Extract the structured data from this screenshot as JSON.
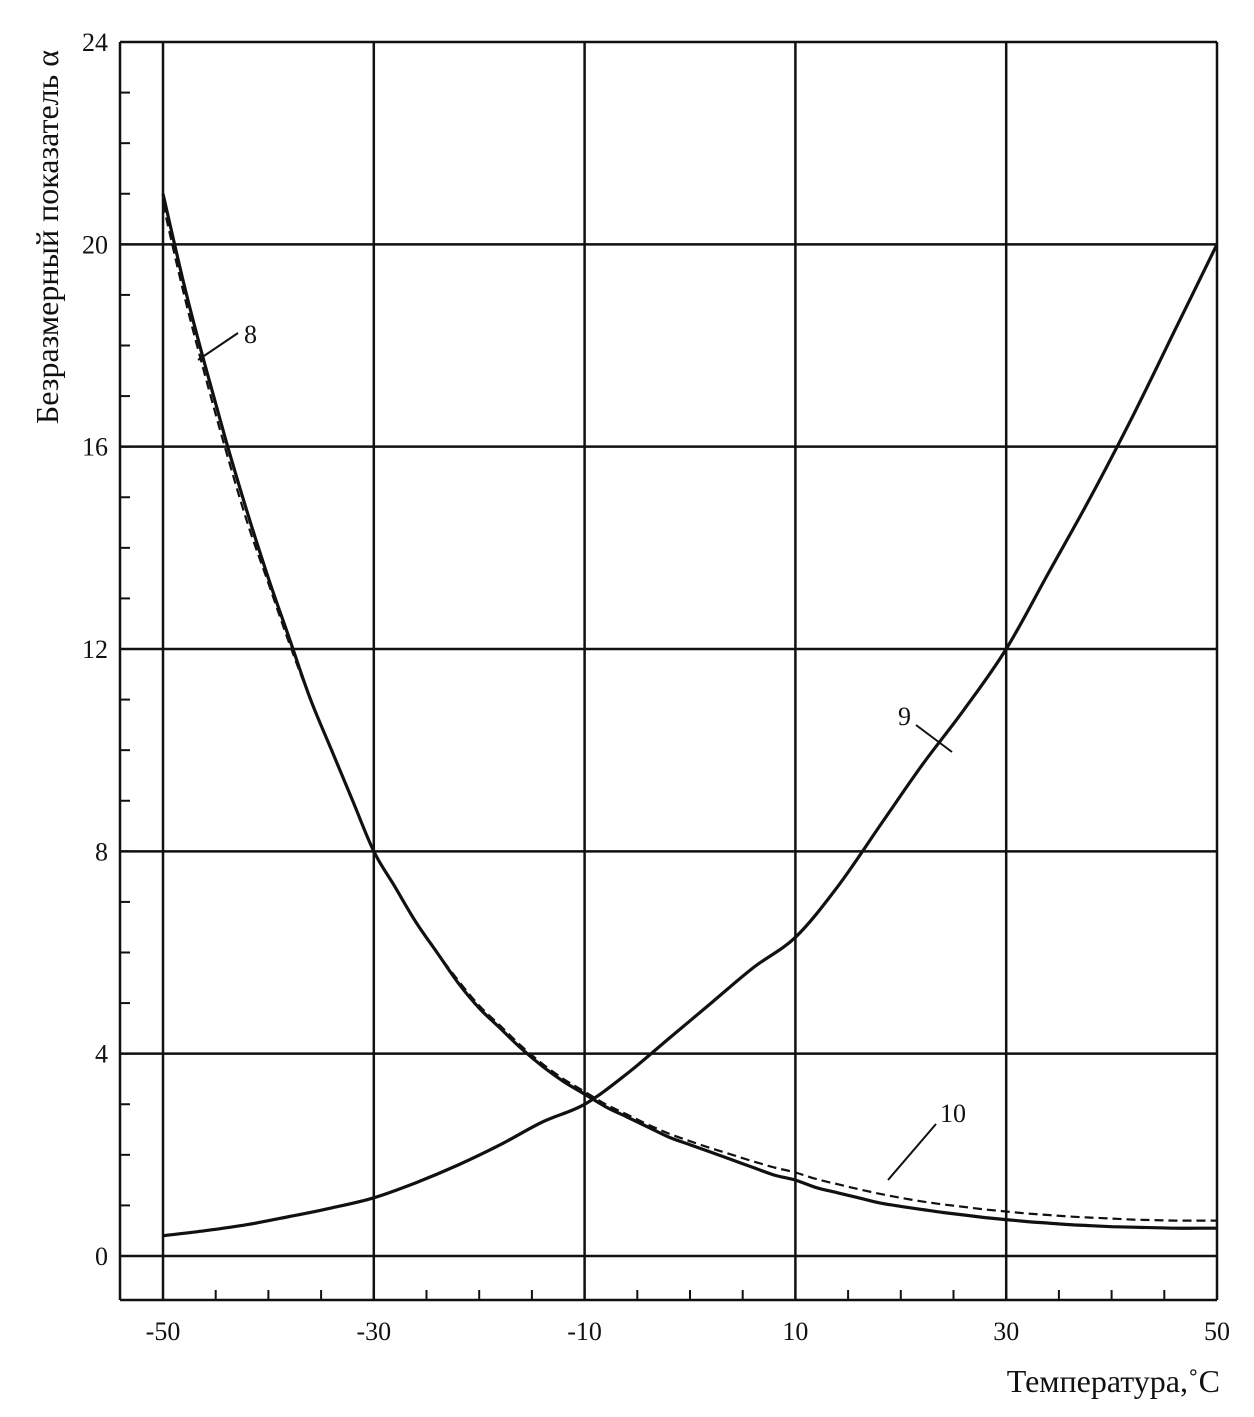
{
  "chart_data": {
    "type": "line",
    "title": "",
    "xlabel": "Температура,˚С",
    "ylabel": "Безразмерный показатель α",
    "xlim": [
      -50,
      50
    ],
    "ylim": [
      0,
      24
    ],
    "x_ticks": [
      -50,
      -30,
      -10,
      10,
      30,
      50
    ],
    "y_ticks": [
      0,
      4,
      8,
      12,
      16,
      20,
      24
    ],
    "x_minor_step": 5,
    "y_minor_step": 1,
    "grid": true,
    "series": [
      {
        "name": "8",
        "style": "solid",
        "color": "#111111",
        "x": [
          -50,
          -48,
          -46,
          -44,
          -42,
          -40,
          -38,
          -36,
          -34,
          -32,
          -30,
          -28,
          -26,
          -24,
          -22,
          -20,
          -18,
          -16,
          -14,
          -12,
          -10,
          -8,
          -6,
          -4,
          -2,
          0,
          2,
          4,
          6,
          8,
          10,
          12,
          14,
          16,
          18,
          20,
          22,
          24,
          26,
          28,
          30,
          32,
          34,
          36,
          38,
          40,
          42,
          44,
          46,
          48,
          50
        ],
        "y": [
          21.0,
          19.2,
          17.6,
          16.1,
          14.7,
          13.4,
          12.2,
          11.0,
          10.0,
          9.0,
          8.0,
          7.3,
          6.6,
          6.0,
          5.4,
          4.9,
          4.5,
          4.1,
          3.75,
          3.45,
          3.2,
          2.95,
          2.75,
          2.55,
          2.35,
          2.2,
          2.05,
          1.9,
          1.75,
          1.6,
          1.5,
          1.35,
          1.25,
          1.15,
          1.05,
          0.98,
          0.92,
          0.86,
          0.81,
          0.76,
          0.72,
          0.68,
          0.65,
          0.62,
          0.6,
          0.58,
          0.57,
          0.56,
          0.55,
          0.55,
          0.55
        ]
      },
      {
        "name": "9",
        "style": "solid",
        "color": "#111111",
        "x": [
          -50,
          -46,
          -42,
          -38,
          -34,
          -30,
          -26,
          -22,
          -18,
          -14,
          -10,
          -6,
          -2,
          2,
          6,
          10,
          14,
          18,
          22,
          26,
          30,
          34,
          38,
          42,
          46,
          50
        ],
        "y": [
          0.4,
          0.5,
          0.62,
          0.78,
          0.95,
          1.15,
          1.45,
          1.8,
          2.2,
          2.65,
          3.0,
          3.6,
          4.3,
          5.0,
          5.7,
          6.3,
          7.3,
          8.5,
          9.7,
          10.8,
          12.0,
          13.5,
          15.0,
          16.6,
          18.3,
          20.0
        ]
      },
      {
        "name": "10",
        "style": "dashed",
        "color": "#111111",
        "x": [
          -50,
          -48,
          -46,
          -44,
          -42,
          -40,
          -38,
          -36,
          -34,
          -32,
          -30,
          -28,
          -26,
          -24,
          -22,
          -20,
          -18,
          -16,
          -14,
          -12,
          -10,
          -8,
          -6,
          -4,
          -2,
          0,
          2,
          4,
          6,
          8,
          10,
          12,
          14,
          16,
          18,
          20,
          22,
          24,
          26,
          28,
          30,
          32,
          34,
          36,
          38,
          40,
          42,
          44,
          46,
          48,
          50
        ],
        "y": [
          20.8,
          19.0,
          17.4,
          15.9,
          14.5,
          13.3,
          12.1,
          11.0,
          10.0,
          9.0,
          8.0,
          7.3,
          6.6,
          6.0,
          5.45,
          4.95,
          4.55,
          4.15,
          3.8,
          3.5,
          3.25,
          3.0,
          2.8,
          2.6,
          2.42,
          2.27,
          2.13,
          2.0,
          1.87,
          1.75,
          1.65,
          1.52,
          1.42,
          1.32,
          1.23,
          1.15,
          1.08,
          1.02,
          0.97,
          0.92,
          0.88,
          0.84,
          0.81,
          0.78,
          0.76,
          0.74,
          0.72,
          0.71,
          0.7,
          0.7,
          0.7
        ]
      }
    ],
    "annotations": [
      {
        "text": "8",
        "series": "8"
      },
      {
        "text": "9",
        "series": "9"
      },
      {
        "text": "10",
        "series": "10"
      }
    ]
  }
}
